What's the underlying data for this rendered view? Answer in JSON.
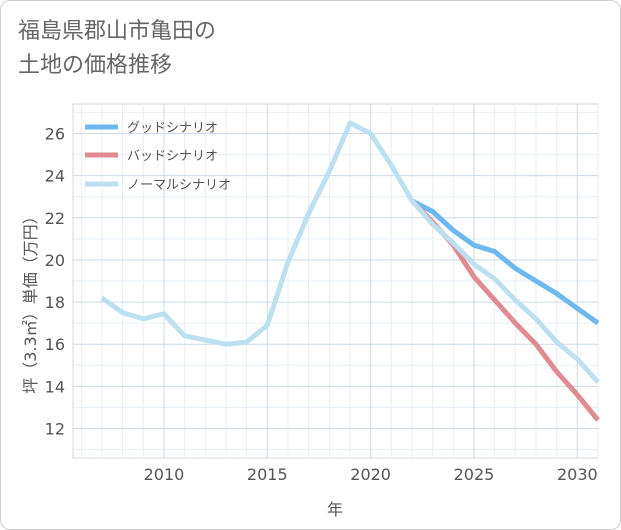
{
  "chart_data": {
    "type": "line",
    "title_lines": [
      "福島県郡山市亀田の",
      "土地の価格推移"
    ],
    "xlabel": "年",
    "ylabel": "坪（3.3㎡）単価（万円）",
    "xlim": [
      2005.6,
      2031
    ],
    "ylim": [
      10.6,
      27.4
    ],
    "xticks": [
      2010,
      2015,
      2020,
      2025,
      2030
    ],
    "yticks": [
      12,
      14,
      16,
      18,
      20,
      22,
      24,
      26
    ],
    "series": [
      {
        "name": "グッドシナリオ",
        "color": "#6cb8ef",
        "x": [
          2022,
          2023,
          2024,
          2025,
          2026,
          2027,
          2028,
          2029,
          2030,
          2031
        ],
        "y": [
          22.8,
          22.3,
          21.4,
          20.7,
          20.4,
          19.6,
          19.0,
          18.4,
          17.7,
          17.0
        ]
      },
      {
        "name": "バッドシナリオ",
        "color": "#e08a93",
        "x": [
          2022,
          2023,
          2024,
          2025,
          2026,
          2027,
          2028,
          2029,
          2030,
          2031
        ],
        "y": [
          22.8,
          21.8,
          20.7,
          19.2,
          18.1,
          17.0,
          16.0,
          14.7,
          13.6,
          12.4
        ]
      },
      {
        "name": "ノーマルシナリオ",
        "color": "#bde0f0",
        "x": [
          2007,
          2008,
          2009,
          2010,
          2011,
          2012,
          2013,
          2014,
          2015,
          2016,
          2017,
          2018,
          2019,
          2020,
          2021,
          2022,
          2023,
          2024,
          2025,
          2026,
          2027,
          2028,
          2029,
          2030,
          2031
        ],
        "y": [
          18.2,
          17.5,
          17.2,
          17.45,
          16.4,
          16.2,
          16.0,
          16.1,
          16.9,
          19.9,
          22.2,
          24.2,
          26.5,
          26.0,
          24.5,
          22.8,
          21.7,
          20.8,
          19.8,
          19.1,
          18.1,
          17.2,
          16.1,
          15.3,
          14.2
        ]
      }
    ],
    "grid": true,
    "legend_position": "top-left"
  }
}
